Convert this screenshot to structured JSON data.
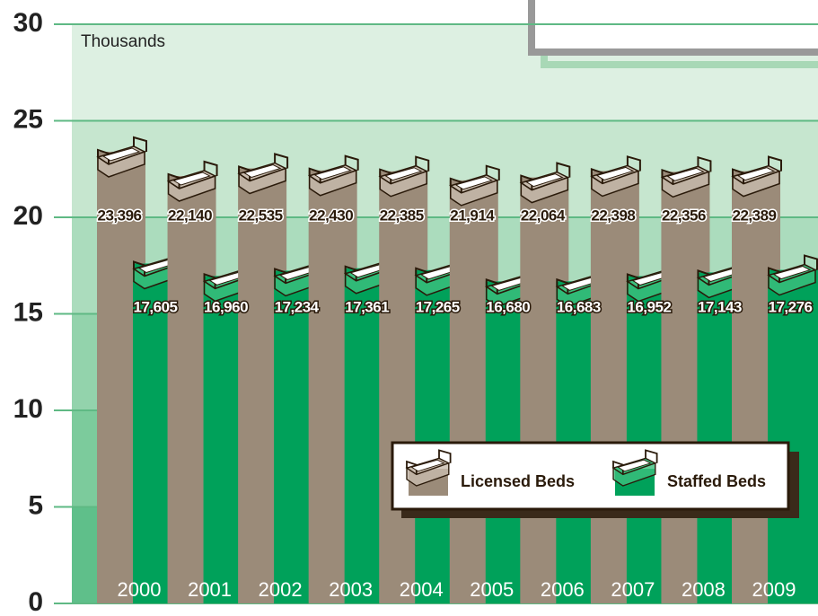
{
  "chart_data": {
    "type": "bar",
    "y_label": "Thousands",
    "categories": [
      "2000",
      "2001",
      "2002",
      "2003",
      "2004",
      "2005",
      "2006",
      "2007",
      "2008",
      "2009"
    ],
    "series": [
      {
        "name": "Licensed Beds",
        "color": "#9b8b79",
        "values": [
          23.396,
          22.14,
          22.535,
          22.43,
          22.385,
          21.914,
          22.064,
          22.398,
          22.356,
          22.389
        ],
        "value_labels": [
          "23,396",
          "22,140",
          "22,535",
          "22,430",
          "22,385",
          "21,914",
          "22,064",
          "22,398",
          "22,356",
          "22,389"
        ]
      },
      {
        "name": "Staffed Beds",
        "color": "#00a15a",
        "values": [
          17.605,
          16.96,
          17.234,
          17.361,
          17.265,
          16.68,
          16.683,
          16.952,
          17.143,
          17.276
        ],
        "value_labels": [
          "17,605",
          "16,960",
          "17,234",
          "17,361",
          "17,265",
          "16,680",
          "16,683",
          "16,952",
          "17,143",
          "17,276"
        ]
      }
    ],
    "ylim": [
      0,
      30
    ],
    "yticks": [
      0,
      5,
      10,
      15,
      20,
      25,
      30
    ],
    "grid": true
  }
}
